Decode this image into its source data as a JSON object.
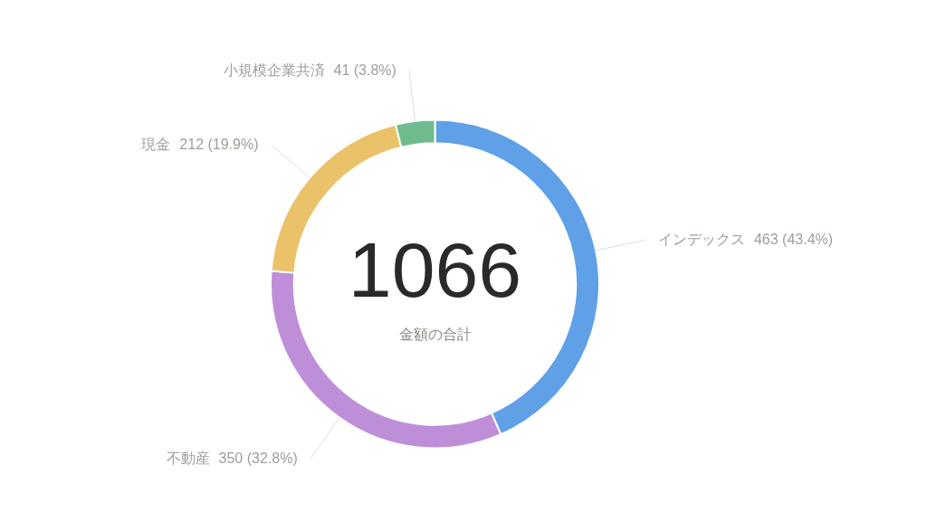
{
  "chart_data": {
    "type": "donut",
    "categories": [
      "インデックス",
      "不動産",
      "現金",
      "小規模企業共済"
    ],
    "values": [
      463,
      350,
      212,
      41
    ],
    "colors": [
      "#5fa0e7",
      "#bf8ed9",
      "#eac26a",
      "#70bb8e"
    ],
    "value_labels": [
      "463 (43.4%)",
      "350 (32.8%)",
      "212 (19.9%)",
      "41 (3.8%)"
    ],
    "annotations": [
      "1066",
      "金額の合計"
    ],
    "legend": false
  }
}
